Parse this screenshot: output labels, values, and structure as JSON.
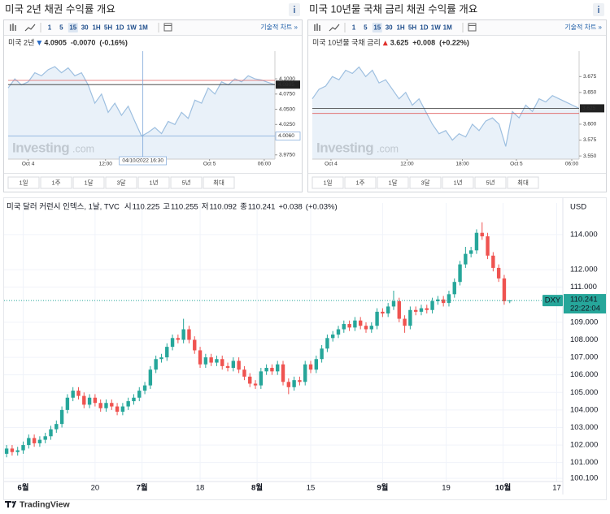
{
  "panels": [
    {
      "title": "미국 2년 채권 수익률 개요",
      "toolbar": [
        "1",
        "5",
        "15",
        "30",
        "1H",
        "5H",
        "1D",
        "1W",
        "1M"
      ],
      "active": "15",
      "tech_link": "기술적 차트 »",
      "instrument": "미국 2년",
      "direction": "down",
      "change": "-0.0070",
      "change_pct": "(-0.16%)",
      "change_color": "#2a6cc6",
      "ranges": [
        "1일",
        "1주",
        "1달",
        "3달",
        "1년",
        "5년",
        "최대"
      ],
      "watermark": [
        "Investing",
        ".com"
      ]
    },
    {
      "title": "미국 10년물 국채 금리  채권 수익률 개요",
      "toolbar": [
        "1",
        "5",
        "15",
        "30",
        "1H",
        "5H",
        "1D",
        "1W",
        "1M"
      ],
      "active": "15",
      "tech_link": "기술적 차트 »",
      "instrument": "미국 10년물 국채 금리",
      "direction": "up",
      "change": "+0.008",
      "change_pct": "(+0.22%)",
      "change_color": "#e0302b",
      "ranges": [
        "1일",
        "1주",
        "1달",
        "3달",
        "1년",
        "5년",
        "최대"
      ],
      "watermark": [
        "Investing",
        ".com"
      ]
    }
  ],
  "chart_data": [
    {
      "type": "area",
      "color": "#9dbfe0",
      "fill": "#e3edf7",
      "prev_close": 4.0975,
      "prev_color": "#e06060",
      "values": [
        4.085,
        4.1,
        4.09,
        4.095,
        4.11,
        4.105,
        4.115,
        4.12,
        4.11,
        4.118,
        4.105,
        4.11,
        4.09,
        4.06,
        4.075,
        4.045,
        4.06,
        4.04,
        4.055,
        4.03,
        4.006,
        4.012,
        4.02,
        4.01,
        4.03,
        4.025,
        4.045,
        4.035,
        4.065,
        4.06,
        4.085,
        4.075,
        4.095,
        4.09,
        4.1,
        4.095,
        4.105,
        4.1,
        4.098,
        4.094,
        4.0905
      ],
      "xlim": [
        0,
        40
      ],
      "xticks": [
        {
          "value": 3,
          "label": "Oct 4"
        },
        {
          "value": 14.6,
          "label": "12:00"
        },
        {
          "value": 30.2,
          "label": "Oct 5"
        },
        {
          "value": 38.4,
          "label": "06:00"
        }
      ],
      "ylim": [
        3.968,
        4.1455
      ],
      "yticks": [
        {
          "value": 4.1,
          "label": "4.1000"
        },
        {
          "value": 4.075,
          "label": "4.0750"
        },
        {
          "value": 4.05,
          "label": "4.0500"
        },
        {
          "value": 4.025,
          "label": "4.0250"
        },
        {
          "value": 3.975,
          "label": "3.9750"
        }
      ],
      "crosshair": {
        "x": 20.2,
        "value": 4.006,
        "label": "4.0060",
        "time": "04/10/2022 16:30"
      }
    },
    {
      "type": "area",
      "color": "#9dbfe0",
      "fill": "#e3edf7",
      "prev_close": 3.617,
      "prev_color": "#e06060",
      "values": [
        3.64,
        3.655,
        3.66,
        3.675,
        3.67,
        3.685,
        3.68,
        3.69,
        3.675,
        3.685,
        3.665,
        3.67,
        3.655,
        3.64,
        3.65,
        3.63,
        3.64,
        3.62,
        3.6,
        3.585,
        3.59,
        3.575,
        3.585,
        3.58,
        3.6,
        3.59,
        3.605,
        3.61,
        3.6,
        3.565,
        3.62,
        3.61,
        3.63,
        3.62,
        3.64,
        3.635,
        3.645,
        3.64,
        3.635,
        3.63,
        3.625
      ],
      "xlim": [
        0,
        40
      ],
      "xticks": [
        {
          "value": 2.8,
          "label": "Oct 4"
        },
        {
          "value": 14.2,
          "label": "12:00"
        },
        {
          "value": 22.5,
          "label": "18:00"
        },
        {
          "value": 30.6,
          "label": "Oct 5"
        },
        {
          "value": 38.9,
          "label": "06:00"
        }
      ],
      "ylim": [
        3.545,
        3.715
      ],
      "yticks": [
        3.675,
        {
          "value": 3.65,
          "label": "3.650"
        },
        {
          "value": 3.6,
          "label": "3.600"
        },
        3.575,
        {
          "value": 3.55,
          "label": "3.550"
        }
      ]
    },
    {
      "type": "candlestick",
      "title": "미국 달러 커런시 인덱스, 1날, TVC",
      "ohlc_labels": [
        "시",
        "고",
        "저",
        "종"
      ],
      "change": "+0.038",
      "change_pct": "(+0.03%)",
      "currency": "USD",
      "symbol": "DXY",
      "countdown": "22:22:04",
      "footer": "TradingView",
      "up_color": "#26a69a",
      "down_color": "#ef5350",
      "grid": true,
      "open": [
        101.5,
        101.8,
        101.6,
        101.7,
        102.0,
        102.4,
        102.1,
        102.3,
        102.5,
        102.9,
        103.2,
        104.0,
        104.7,
        105.1,
        104.8,
        104.3,
        104.7,
        104.4,
        104.1,
        104.4,
        104.2,
        103.9,
        104.2,
        104.5,
        104.7,
        105.1,
        105.4,
        106.3,
        106.9,
        107.0,
        107.6,
        108.1,
        108.0,
        108.6,
        108.0,
        107.4,
        106.6,
        107.0,
        106.7,
        106.9,
        106.5,
        106.4,
        106.8,
        106.3,
        105.9,
        105.5,
        105.4,
        106.2,
        106.4,
        106.2,
        106.6,
        105.6,
        105.3,
        105.7,
        105.6,
        106.6,
        106.3,
        106.9,
        107.5,
        108.1,
        108.3,
        108.6,
        108.9,
        108.7,
        109.1,
        108.8,
        108.6,
        108.8,
        109.6,
        109.5,
        109.9,
        110.2,
        109.2,
        108.8,
        109.7,
        109.6,
        109.8,
        109.7,
        110.2,
        110.3,
        110.1,
        110.6,
        111.3,
        112.3,
        112.9,
        113.1,
        114.1,
        113.9,
        112.8,
        112.1,
        111.5,
        110.225
      ],
      "high": [
        102.0,
        102.0,
        101.9,
        102.2,
        102.6,
        102.6,
        102.5,
        102.7,
        103.1,
        103.4,
        104.2,
        104.9,
        105.3,
        105.3,
        105.0,
        104.9,
        104.9,
        104.6,
        104.6,
        104.6,
        104.4,
        104.4,
        104.7,
        104.9,
        105.3,
        105.6,
        106.5,
        107.1,
        107.2,
        107.8,
        108.3,
        108.3,
        109.2,
        108.8,
        108.2,
        107.6,
        107.2,
        107.2,
        107.1,
        107.1,
        106.7,
        107.0,
        107.0,
        106.5,
        106.1,
        105.7,
        106.4,
        106.6,
        106.6,
        106.8,
        106.8,
        105.8,
        105.9,
        105.9,
        106.8,
        106.8,
        107.1,
        107.7,
        108.3,
        108.5,
        108.8,
        109.1,
        109.1,
        109.3,
        109.3,
        109.0,
        109.0,
        109.8,
        109.8,
        110.1,
        110.8,
        110.4,
        109.4,
        109.9,
        109.9,
        110.0,
        110.0,
        110.4,
        110.5,
        110.5,
        110.8,
        111.5,
        112.5,
        113.3,
        113.3,
        114.3,
        114.7,
        114.1,
        113.0,
        112.3,
        111.7,
        110.255
      ],
      "low": [
        101.3,
        101.4,
        101.4,
        101.5,
        101.8,
        101.9,
        101.9,
        102.1,
        102.3,
        102.7,
        103.0,
        103.8,
        104.5,
        104.6,
        104.1,
        104.1,
        104.2,
        103.9,
        103.9,
        104.0,
        103.7,
        103.7,
        104.0,
        104.3,
        104.5,
        104.9,
        105.2,
        106.1,
        106.7,
        106.8,
        107.4,
        107.8,
        107.8,
        107.8,
        107.2,
        106.4,
        106.4,
        106.5,
        106.5,
        106.3,
        106.2,
        106.2,
        106.1,
        105.7,
        105.3,
        105.2,
        105.2,
        106.0,
        106.0,
        106.0,
        105.4,
        104.9,
        105.1,
        105.4,
        105.4,
        106.1,
        106.1,
        106.7,
        107.3,
        107.9,
        108.1,
        108.4,
        108.5,
        108.5,
        108.6,
        108.4,
        108.4,
        108.6,
        109.3,
        109.3,
        109.7,
        109.0,
        108.4,
        108.6,
        109.4,
        109.4,
        109.5,
        109.5,
        110.0,
        109.9,
        109.9,
        110.4,
        111.1,
        112.1,
        112.7,
        112.9,
        113.7,
        112.6,
        111.9,
        111.3,
        110.0,
        110.092
      ],
      "close": [
        101.8,
        101.6,
        101.7,
        102.0,
        102.4,
        102.1,
        102.3,
        102.5,
        102.9,
        103.2,
        104.0,
        104.7,
        105.1,
        104.8,
        104.3,
        104.7,
        104.4,
        104.1,
        104.4,
        104.2,
        103.9,
        104.2,
        104.5,
        104.7,
        105.1,
        105.4,
        106.3,
        106.9,
        107.0,
        107.6,
        108.1,
        108.0,
        108.6,
        108.0,
        107.4,
        106.6,
        107.0,
        106.7,
        106.9,
        106.5,
        106.4,
        106.8,
        106.3,
        105.9,
        105.5,
        105.4,
        106.2,
        106.4,
        106.2,
        106.6,
        105.6,
        105.3,
        105.7,
        105.6,
        106.6,
        106.3,
        106.9,
        107.5,
        108.1,
        108.3,
        108.6,
        108.9,
        108.7,
        109.1,
        108.8,
        108.6,
        108.8,
        109.6,
        109.5,
        109.9,
        110.2,
        109.2,
        108.8,
        109.7,
        109.6,
        109.8,
        109.7,
        110.2,
        110.3,
        110.1,
        110.6,
        111.3,
        112.3,
        112.9,
        113.1,
        114.1,
        113.9,
        112.8,
        112.1,
        111.5,
        110.2,
        110.241
      ],
      "xlim": [
        -0.9,
        100.6
      ],
      "xticks": [
        {
          "value": 3,
          "label": "6월"
        },
        {
          "value": 16,
          "label": "20"
        },
        {
          "value": 24.5,
          "label": "7월"
        },
        {
          "value": 35,
          "label": "18"
        },
        {
          "value": 45.3,
          "label": "8월"
        },
        {
          "value": 55,
          "label": "15"
        },
        {
          "value": 68,
          "label": "9월"
        },
        {
          "value": 79.5,
          "label": "19"
        },
        {
          "value": 89.8,
          "label": "10월"
        },
        {
          "value": 99.5,
          "label": "17"
        }
      ],
      "ylim": [
        99.92,
        115.8
      ],
      "yticks": [
        {
          "value": 114,
          "label": "114.000"
        },
        {
          "value": 112,
          "label": "112.000"
        },
        {
          "value": 111,
          "label": "111.000"
        },
        {
          "value": 109,
          "label": "109.000"
        },
        {
          "value": 108,
          "label": "108.000"
        },
        {
          "value": 107,
          "label": "107.000"
        },
        {
          "value": 106,
          "label": "106.000"
        },
        {
          "value": 105,
          "label": "105.000"
        },
        {
          "value": 104,
          "label": "104.000"
        },
        {
          "value": 103,
          "label": "103.000"
        },
        {
          "value": 102,
          "label": "102.000"
        },
        {
          "value": 101,
          "label": "101.000"
        },
        {
          "value": 100.1,
          "label": "100.100"
        }
      ]
    }
  ]
}
